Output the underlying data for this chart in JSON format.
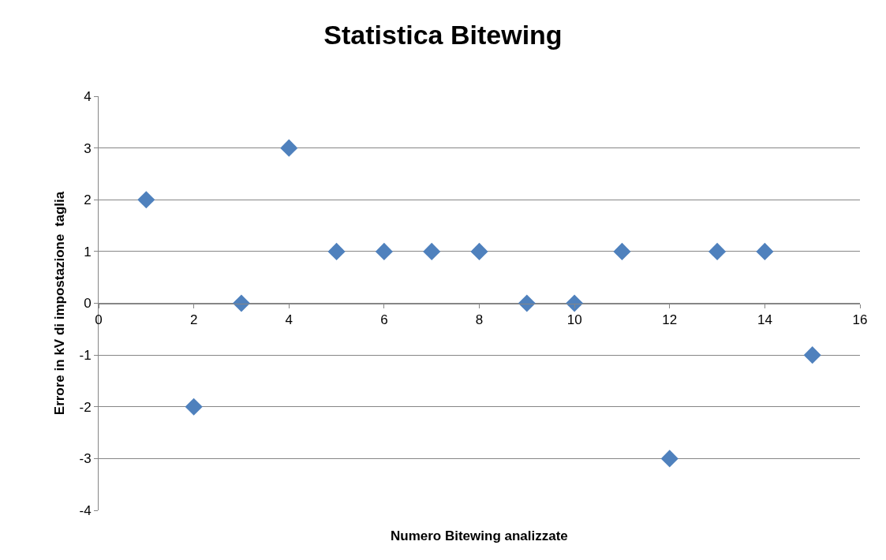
{
  "chart_data": {
    "type": "scatter",
    "title": "Statistica Bitewing",
    "xlabel": "Numero Bitewing analizzate",
    "ylabel": "Errore in kV di impostazione  taglia",
    "x": [
      1,
      2,
      3,
      4,
      5,
      6,
      7,
      8,
      9,
      10,
      11,
      12,
      13,
      14,
      15
    ],
    "values": [
      2,
      -2,
      0,
      3,
      1,
      1,
      1,
      1,
      0,
      0,
      1,
      -3,
      1,
      1,
      -1
    ],
    "color": "#4f81bd",
    "marker": "diamond",
    "xlim": [
      0,
      16
    ],
    "xticks": [
      0,
      2,
      4,
      6,
      8,
      10,
      12,
      14,
      16
    ],
    "ylim": [
      -4,
      4
    ],
    "yticks": [
      -4,
      -3,
      -2,
      -1,
      0,
      1,
      2,
      3,
      4
    ],
    "grid": "y"
  }
}
